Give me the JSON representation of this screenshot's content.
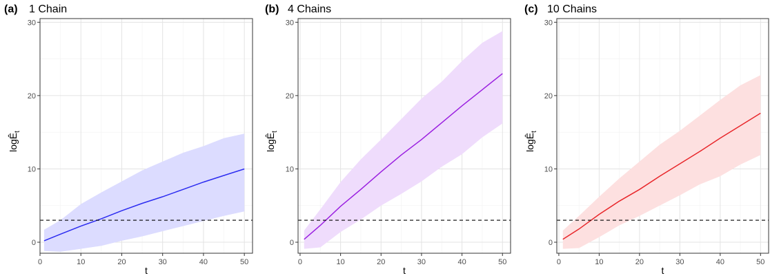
{
  "figure": {
    "y_axis_label": "logÊt",
    "x_axis_label": "t"
  },
  "chart_data": [
    {
      "type": "line",
      "panel_tag": "(a)",
      "title": "1 Chain",
      "xlabel": "t",
      "ylabel": "logÊt",
      "xlim": [
        0,
        52
      ],
      "ylim": [
        -1.5,
        30.5
      ],
      "x_ticks": [
        0,
        10,
        20,
        30,
        40,
        50
      ],
      "y_ticks": [
        0,
        10,
        20,
        30
      ],
      "grid": true,
      "reference_line": {
        "y": 3,
        "style": "dashed",
        "color": "#000000"
      },
      "series": [
        {
          "color": "#2b2bf0",
          "band_color": "#dcdcff",
          "x": [
            1,
            5,
            10,
            15,
            20,
            25,
            30,
            35,
            40,
            45,
            50
          ],
          "values": [
            0.2,
            1.1,
            2.2,
            3.2,
            4.3,
            5.3,
            6.2,
            7.2,
            8.2,
            9.1,
            10.0
          ],
          "upper": [
            1.7,
            3.0,
            5.2,
            6.8,
            8.3,
            9.8,
            11.0,
            12.2,
            13.1,
            14.2,
            14.8
          ],
          "lower": [
            -1.2,
            -1.3,
            -0.9,
            -0.5,
            0.2,
            0.8,
            1.5,
            2.2,
            2.9,
            3.6,
            4.2
          ]
        }
      ]
    },
    {
      "type": "line",
      "panel_tag": "(b)",
      "title": "4 Chains",
      "xlabel": "t",
      "ylabel": "logÊt",
      "xlim": [
        -0.5,
        52
      ],
      "ylim": [
        -1.5,
        30.5
      ],
      "x_ticks": [
        0,
        10,
        20,
        30,
        40,
        50
      ],
      "y_ticks": [
        0,
        10,
        20,
        30
      ],
      "grid": true,
      "reference_line": {
        "y": 3,
        "style": "dashed",
        "color": "#000000"
      },
      "series": [
        {
          "color": "#9a1fe0",
          "band_color": "#efdcfc",
          "x": [
            1,
            5,
            10,
            15,
            20,
            25,
            30,
            35,
            40,
            45,
            50
          ],
          "values": [
            0.4,
            2.3,
            4.9,
            7.2,
            9.6,
            11.9,
            14.0,
            16.3,
            18.6,
            20.8,
            23.0
          ],
          "upper": [
            1.6,
            4.5,
            8.2,
            11.3,
            14.0,
            16.8,
            19.6,
            21.9,
            24.7,
            27.2,
            28.8
          ],
          "lower": [
            -0.9,
            -0.7,
            1.4,
            3.1,
            5.0,
            6.6,
            8.3,
            10.3,
            12.0,
            14.3,
            16.2
          ]
        }
      ]
    },
    {
      "type": "line",
      "panel_tag": "(c)",
      "title": "10 Chains",
      "xlabel": "t",
      "ylabel": "logÊt",
      "xlim": [
        -0.5,
        52
      ],
      "ylim": [
        -1.5,
        30.5
      ],
      "x_ticks": [
        0,
        10,
        20,
        30,
        40,
        50
      ],
      "y_ticks": [
        0,
        10,
        20,
        30
      ],
      "grid": true,
      "reference_line": {
        "y": 3,
        "style": "dashed",
        "color": "#000000"
      },
      "series": [
        {
          "color": "#e8262a",
          "band_color": "#fde0e0",
          "x": [
            1,
            5,
            10,
            15,
            20,
            25,
            30,
            35,
            40,
            45,
            50
          ],
          "values": [
            0.4,
            1.8,
            3.8,
            5.6,
            7.2,
            9.0,
            10.7,
            12.4,
            14.2,
            15.9,
            17.6
          ],
          "upper": [
            1.6,
            3.6,
            6.2,
            8.7,
            11.0,
            13.3,
            15.2,
            17.3,
            19.4,
            21.4,
            22.8
          ],
          "lower": [
            -0.9,
            -0.8,
            0.7,
            2.3,
            3.6,
            5.0,
            6.4,
            7.9,
            9.0,
            10.6,
            11.9
          ]
        }
      ]
    }
  ]
}
